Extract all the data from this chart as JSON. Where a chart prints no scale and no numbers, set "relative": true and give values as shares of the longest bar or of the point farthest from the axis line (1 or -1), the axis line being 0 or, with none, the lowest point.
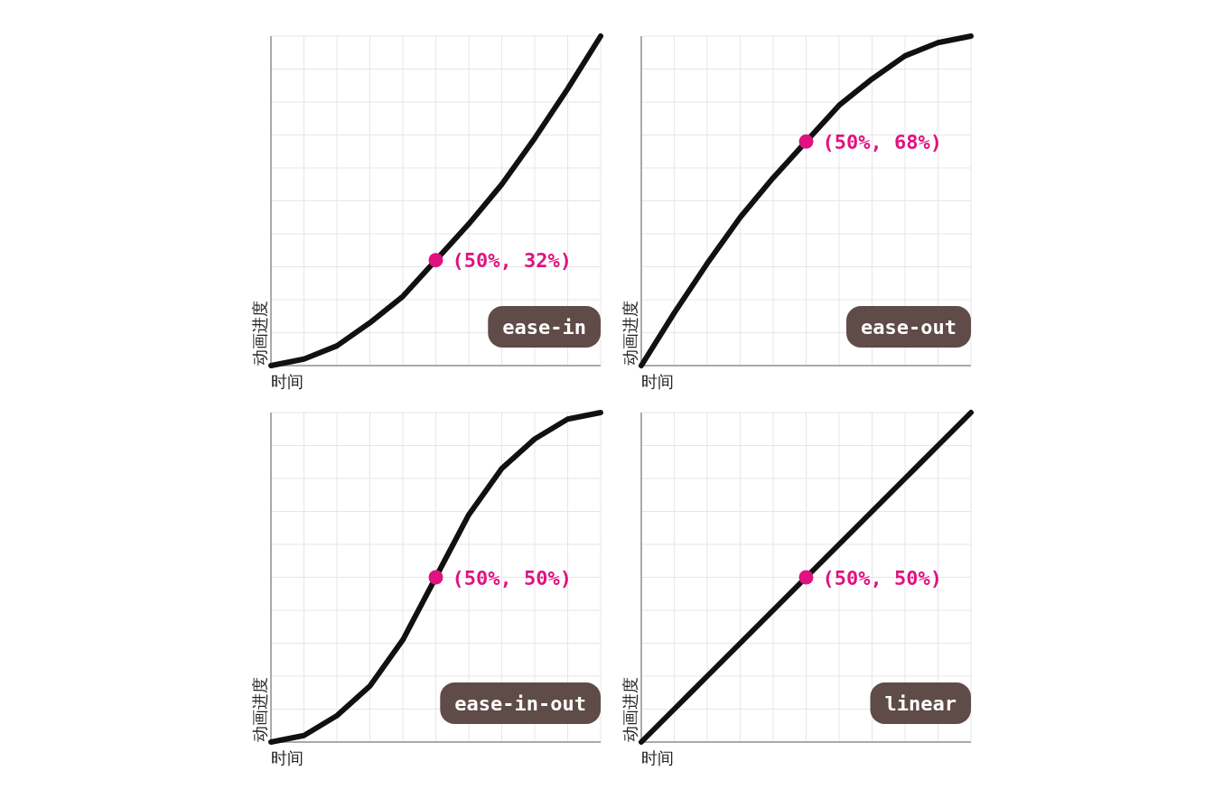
{
  "chart_data": [
    {
      "type": "line",
      "xlabel": "时间",
      "ylabel": "动画进度",
      "relative": true,
      "grid": true,
      "categories": [
        null,
        null,
        null,
        null,
        null,
        null,
        null,
        null,
        null,
        null,
        null
      ],
      "series": [
        {
          "color": "#111111",
          "values": [
            0,
            0.02,
            0.06,
            0.13,
            0.21,
            0.32,
            0.43,
            0.55,
            0.69,
            0.84,
            1
          ]
        }
      ],
      "annotations": [
        "(50%, 32%)",
        "ease-in"
      ]
    },
    {
      "type": "line",
      "xlabel": "时间",
      "ylabel": "动画进度",
      "relative": true,
      "grid": true,
      "categories": [
        null,
        null,
        null,
        null,
        null,
        null,
        null,
        null,
        null,
        null,
        null
      ],
      "series": [
        {
          "color": "#111111",
          "values": [
            0,
            0.16,
            0.31,
            0.45,
            0.57,
            0.68,
            0.79,
            0.87,
            0.94,
            0.98,
            1
          ]
        }
      ],
      "annotations": [
        "(50%, 68%)",
        "ease-out"
      ]
    },
    {
      "type": "line",
      "xlabel": "时间",
      "ylabel": "动画进度",
      "relative": true,
      "grid": true,
      "categories": [
        null,
        null,
        null,
        null,
        null,
        null,
        null,
        null,
        null,
        null,
        null
      ],
      "series": [
        {
          "color": "#111111",
          "values": [
            0,
            0.02,
            0.08,
            0.17,
            0.31,
            0.5,
            0.69,
            0.83,
            0.92,
            0.98,
            1
          ]
        }
      ],
      "annotations": [
        "(50%, 50%)",
        "ease-in-out"
      ]
    },
    {
      "type": "line",
      "xlabel": "时间",
      "ylabel": "动画进度",
      "relative": true,
      "grid": true,
      "categories": [
        null,
        null,
        null,
        null,
        null,
        null,
        null,
        null,
        null,
        null,
        null
      ],
      "series": [
        {
          "color": "#111111",
          "values": [
            0,
            0.1,
            0.2,
            0.3,
            0.4,
            0.5,
            0.6,
            0.7,
            0.8,
            0.9,
            1
          ]
        }
      ],
      "annotations": [
        "(50%, 50%)",
        "linear"
      ]
    }
  ]
}
